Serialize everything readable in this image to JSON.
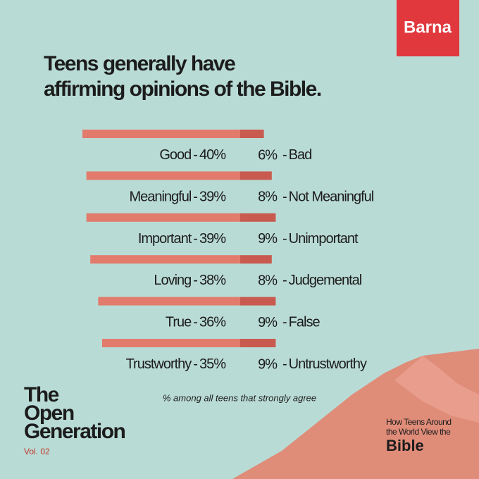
{
  "chart_data": {
    "type": "bar",
    "title": [
      "Teens generally have",
      "affirming opinions of the Bible."
    ],
    "note": "% among all teens that strongly agree",
    "separator": "-",
    "categories": [
      "Good",
      "Meaningful",
      "Important",
      "Loving",
      "True",
      "Trustworthy"
    ],
    "counter_categories": [
      "Bad",
      "Not Meaningful",
      "Unimportant",
      "Judgemental",
      "False",
      "Untrustworthy"
    ],
    "series": [
      {
        "color": "#e27b6c",
        "values": [
          40,
          39,
          39,
          38,
          36,
          35
        ],
        "value_labels": [
          "40%",
          "39%",
          "39%",
          "38%",
          "36%",
          "35%"
        ]
      },
      {
        "color": "#c95a4f",
        "values": [
          6,
          8,
          9,
          8,
          9,
          9
        ],
        "value_labels": [
          "6%",
          "8%",
          "9%",
          "8%",
          "9%",
          "9%"
        ]
      }
    ]
  },
  "branding": {
    "logo": "Barna",
    "series_title": [
      "The",
      "Open",
      "Generation"
    ],
    "volume": "Vol. 02",
    "report_subtitle": [
      "How Teens Around",
      "the World View the"
    ],
    "report_title": "Bible"
  }
}
